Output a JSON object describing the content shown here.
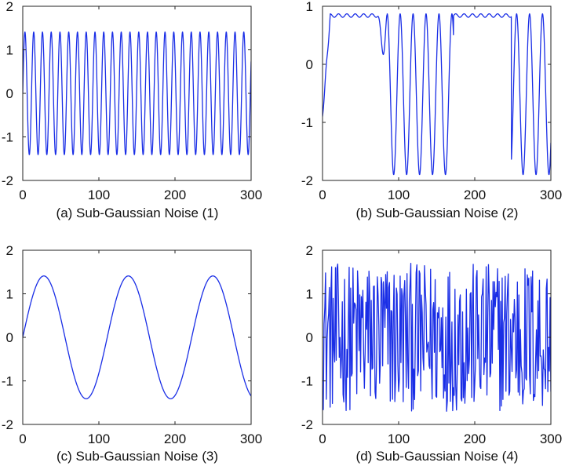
{
  "chart_data": [
    {
      "type": "line",
      "caption": "(a) Sub-Gaussian Noise (1)",
      "xlim": [
        0,
        300
      ],
      "ylim": [
        -2,
        2
      ],
      "xticks": [
        0,
        100,
        200,
        300
      ],
      "yticks": [
        2,
        1,
        0,
        -1,
        -2
      ],
      "grid": false,
      "series": [
        {
          "color": "#1a2ee6",
          "function": "sine",
          "amplitude": 1.41,
          "period": 11.5,
          "phase": 0,
          "x_range": [
            0,
            300
          ]
        }
      ]
    },
    {
      "type": "line",
      "caption": "(b) Sub-Gaussian Noise (2)",
      "xlim": [
        0,
        300
      ],
      "ylim": [
        -2,
        1
      ],
      "xticks": [
        0,
        100,
        200,
        300
      ],
      "yticks": [
        1,
        0,
        -1,
        -2
      ],
      "grid": false,
      "series": [
        {
          "color": "#1a2ee6",
          "function": "clipped-phase-modulated",
          "upper_plateau": 0.87,
          "lower_limit": -1.9,
          "x_range": [
            0,
            300
          ]
        }
      ]
    },
    {
      "type": "line",
      "caption": "(c) Sub-Gaussian Noise (3)",
      "xlim": [
        0,
        300
      ],
      "ylim": [
        -2,
        2
      ],
      "xticks": [
        0,
        100,
        200,
        300
      ],
      "yticks": [
        2,
        1,
        0,
        -1,
        -2
      ],
      "grid": false,
      "series": [
        {
          "color": "#1a2ee6",
          "function": "sine",
          "amplitude": 1.41,
          "period": 111,
          "phase": 0,
          "x_range": [
            0,
            300
          ]
        }
      ]
    },
    {
      "type": "line",
      "caption": "(d) Sub-Gaussian Noise (4)",
      "xlim": [
        0,
        300
      ],
      "ylim": [
        -2,
        2
      ],
      "xticks": [
        0,
        100,
        200,
        300
      ],
      "yticks": [
        2,
        1,
        0,
        -1,
        -2
      ],
      "grid": false,
      "series": [
        {
          "color": "#1a2ee6",
          "function": "random",
          "amplitude": 1.7,
          "samples": 300,
          "x_range": [
            0,
            300
          ]
        }
      ]
    }
  ]
}
